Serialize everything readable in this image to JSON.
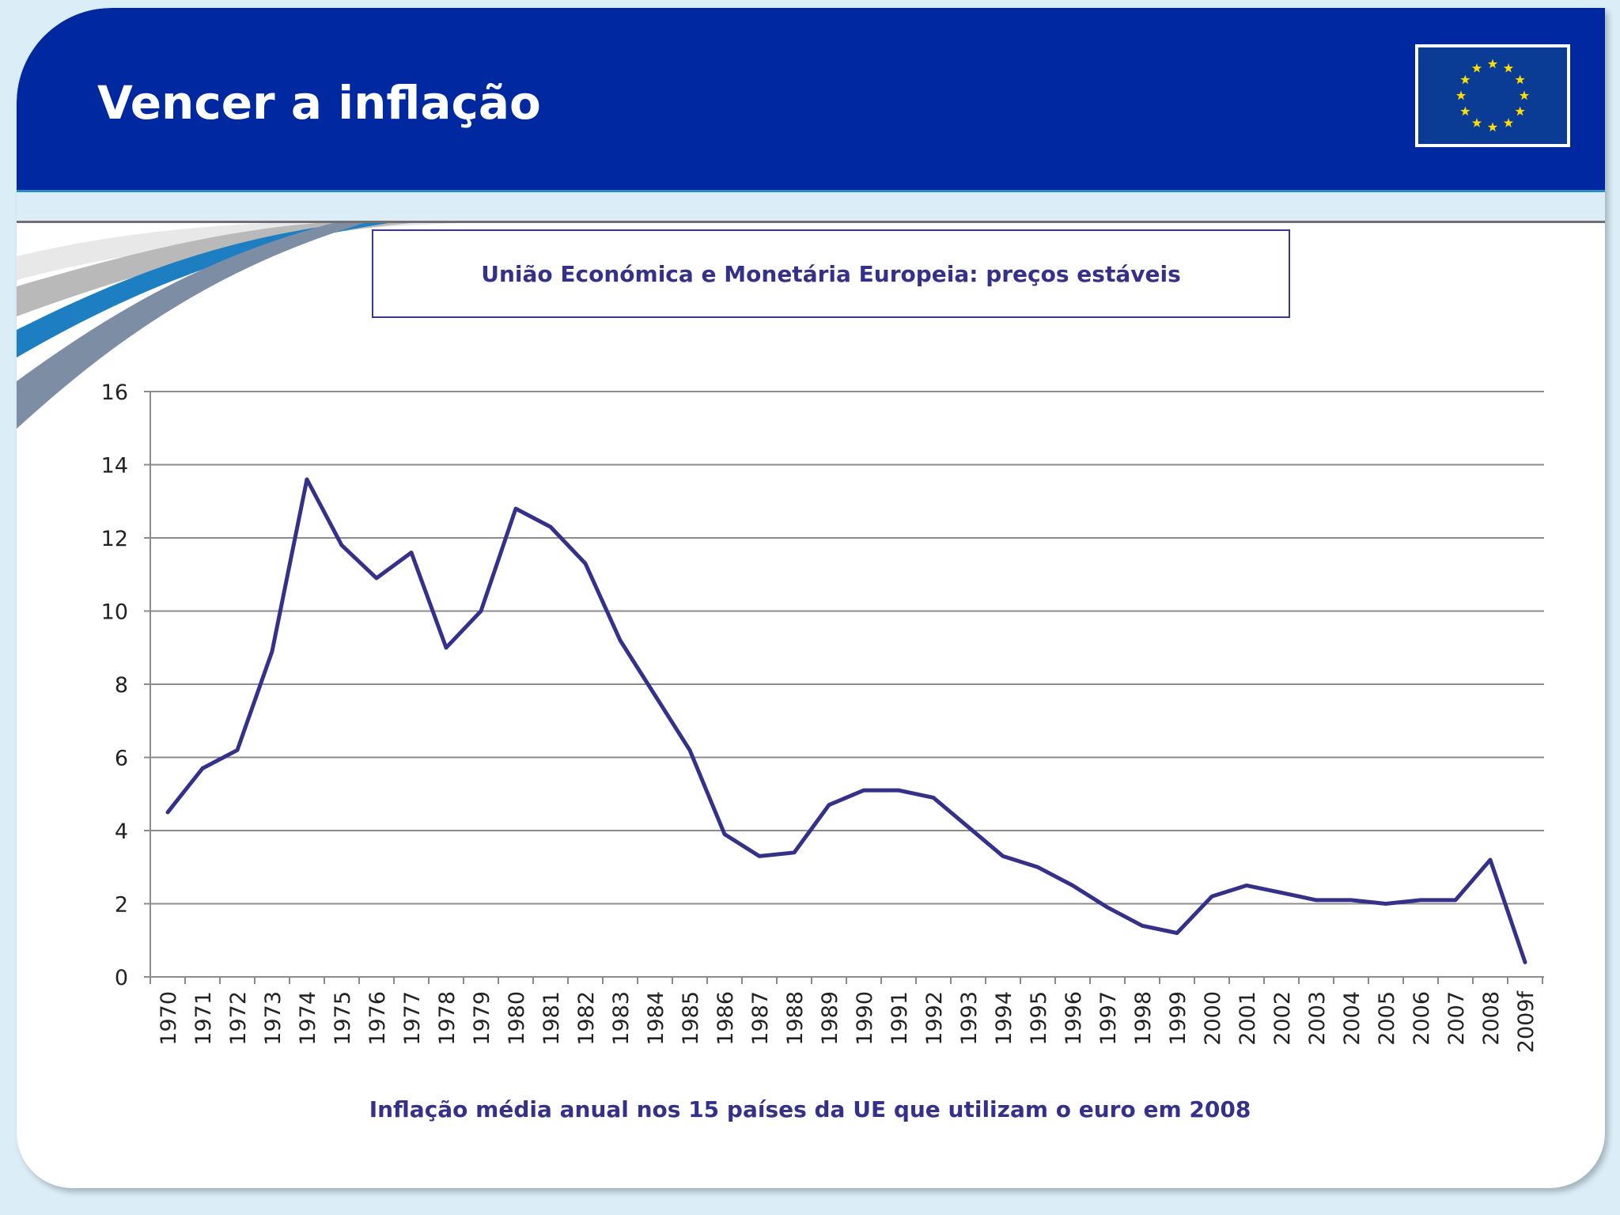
{
  "slide": {
    "title": "Vencer a inflação",
    "flag_icon": "eu-flag-icon",
    "colors": {
      "header": "#0028a0",
      "line": "#35318b",
      "background": "#dbeef8"
    }
  },
  "chart_data": {
    "type": "line",
    "title": "União Económica e Monetária Europeia: preços estáveis",
    "caption": "Inflação média anual nos 15 países da UE que utilizam o euro em 2008",
    "xlabel": "",
    "ylabel": "",
    "ylim": [
      0,
      16
    ],
    "yticks": [
      "0",
      "2",
      "4",
      "6",
      "8",
      "10",
      "12",
      "14",
      "16"
    ],
    "grid": true,
    "legend": "none",
    "categories": [
      "1970",
      "1971",
      "1972",
      "1973",
      "1974",
      "1975",
      "1976",
      "1977",
      "1978",
      "1979",
      "1980",
      "1981",
      "1982",
      "1983",
      "1984",
      "1985",
      "1986",
      "1987",
      "1988",
      "1989",
      "1990",
      "1991",
      "1992",
      "1993",
      "1994",
      "1995",
      "1996",
      "1997",
      "1998",
      "1999",
      "2000",
      "2001",
      "2002",
      "2003",
      "2004",
      "2005",
      "2006",
      "2007",
      "2008",
      "2009f"
    ],
    "series": [
      {
        "values": [
          4.5,
          5.7,
          6.2,
          8.9,
          13.6,
          11.8,
          10.9,
          11.6,
          9.0,
          10.0,
          12.8,
          12.3,
          11.3,
          9.2,
          7.7,
          6.2,
          3.9,
          3.3,
          3.4,
          4.7,
          5.1,
          5.1,
          4.9,
          4.1,
          3.3,
          3.0,
          2.5,
          1.9,
          1.4,
          1.2,
          2.2,
          2.5,
          2.3,
          2.1,
          2.1,
          2.0,
          2.1,
          2.1,
          3.2,
          0.4
        ]
      }
    ]
  }
}
